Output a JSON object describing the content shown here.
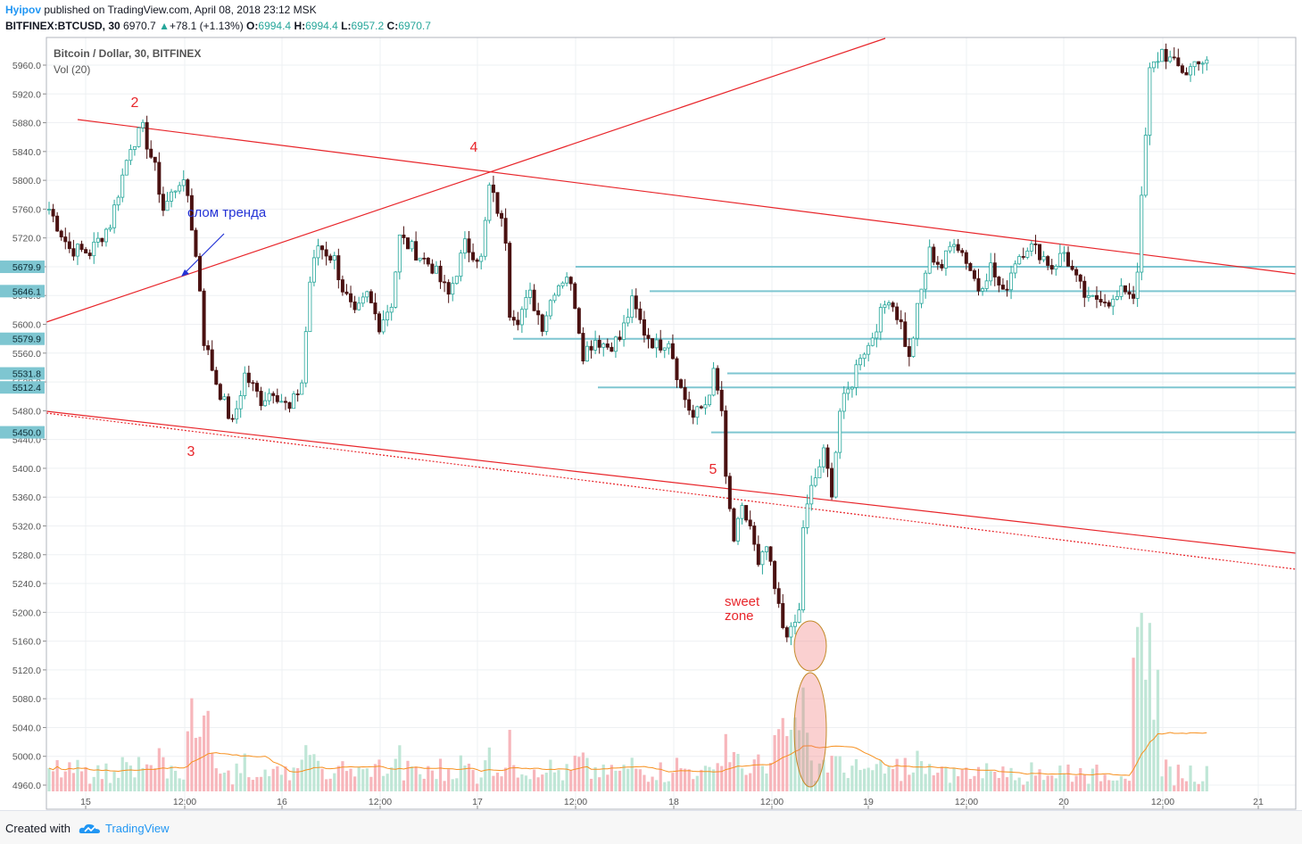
{
  "header": {
    "author": "Hyipov",
    "published": "published on TradingView.com, April 08, 2018 23:12 MSK",
    "symbol": "BITFINEX:BTCUSD, 30",
    "last": "6970.7",
    "up_arrow": "▲",
    "change": "+78.1 (+1.13%)",
    "o_label": "O:",
    "o_val": "6994.4",
    "h_label": "H:",
    "h_val": "6994.4",
    "l_label": "L:",
    "l_val": "6957.2",
    "c_label": "C:",
    "c_val": "6970.7"
  },
  "legend": {
    "title": "Bitcoin / Dollar, 30, BITFINEX",
    "volume": "Vol (20)"
  },
  "footer": {
    "created": "Created with",
    "brand": "TradingView"
  },
  "colors": {
    "up": "#26a69a",
    "down": "#4a1111",
    "trend": "#e8262b",
    "hline": "#7ec6d1",
    "vol_up": "#bfe6d6",
    "vol_down": "#f7b6bb",
    "vol_ma": "#f7901e",
    "annotation": "#e8262b",
    "arrow_text": "#2433d6"
  },
  "chart_data": {
    "type": "candlestick",
    "x_ticks": [
      "15",
      "12:00",
      "16",
      "12:00",
      "17",
      "12:00",
      "18",
      "12:00",
      "19",
      "12:00",
      "20",
      "12:00",
      "21"
    ],
    "y_ticks": [
      5960.0,
      5920.0,
      5880.0,
      5840.0,
      5800.0,
      5760.0,
      5720.0,
      5680.0,
      5640.0,
      5600.0,
      5560.0,
      5520.0,
      5480.0,
      5440.0,
      5400.0,
      5360.0,
      5320.0,
      5280.0,
      5240.0,
      5200.0,
      5160.0,
      5120.0,
      5080.0,
      5040.0,
      5000.0,
      4960.0
    ],
    "ylim": [
      4950,
      5980
    ],
    "price_labels": [
      5679.9,
      5646.1,
      5579.9,
      5531.8,
      5512.4,
      5450.0
    ],
    "anchors": [
      {
        "t": 0,
        "p": 5760
      },
      {
        "t": 5,
        "p": 5705
      },
      {
        "t": 10,
        "p": 5700
      },
      {
        "t": 15,
        "p": 5740
      },
      {
        "t": 20,
        "p": 5850
      },
      {
        "t": 23,
        "p": 5870
      },
      {
        "t": 26,
        "p": 5815
      },
      {
        "t": 28,
        "p": 5760
      },
      {
        "t": 32,
        "p": 5800
      },
      {
        "t": 34,
        "p": 5780
      },
      {
        "t": 37,
        "p": 5650
      },
      {
        "t": 38,
        "p": 5578
      },
      {
        "t": 41,
        "p": 5520
      },
      {
        "t": 45,
        "p": 5460
      },
      {
        "t": 48,
        "p": 5530
      },
      {
        "t": 52,
        "p": 5495
      },
      {
        "t": 55,
        "p": 5510
      },
      {
        "t": 59,
        "p": 5480
      },
      {
        "t": 62,
        "p": 5520
      },
      {
        "t": 64,
        "p": 5660
      },
      {
        "t": 66,
        "p": 5710
      },
      {
        "t": 70,
        "p": 5690
      },
      {
        "t": 72,
        "p": 5650
      },
      {
        "t": 75,
        "p": 5610
      },
      {
        "t": 78,
        "p": 5640
      },
      {
        "t": 81,
        "p": 5600
      },
      {
        "t": 84,
        "p": 5630
      },
      {
        "t": 86,
        "p": 5720
      },
      {
        "t": 90,
        "p": 5700
      },
      {
        "t": 94,
        "p": 5680
      },
      {
        "t": 98,
        "p": 5640
      },
      {
        "t": 102,
        "p": 5710
      },
      {
        "t": 106,
        "p": 5690
      },
      {
        "t": 108,
        "p": 5790
      },
      {
        "t": 110,
        "p": 5760
      },
      {
        "t": 112,
        "p": 5720
      },
      {
        "t": 113,
        "p": 5620
      },
      {
        "t": 115,
        "p": 5610
      },
      {
        "t": 118,
        "p": 5640
      },
      {
        "t": 121,
        "p": 5600
      },
      {
        "t": 124,
        "p": 5650
      },
      {
        "t": 127,
        "p": 5670
      },
      {
        "t": 129,
        "p": 5630
      },
      {
        "t": 131,
        "p": 5560
      },
      {
        "t": 134,
        "p": 5580
      },
      {
        "t": 137,
        "p": 5570
      },
      {
        "t": 140,
        "p": 5580
      },
      {
        "t": 143,
        "p": 5630
      },
      {
        "t": 146,
        "p": 5590
      },
      {
        "t": 149,
        "p": 5570
      },
      {
        "t": 152,
        "p": 5580
      },
      {
        "t": 155,
        "p": 5510
      },
      {
        "t": 158,
        "p": 5470
      },
      {
        "t": 161,
        "p": 5490
      },
      {
        "t": 163,
        "p": 5530
      },
      {
        "t": 165,
        "p": 5480
      },
      {
        "t": 166,
        "p": 5380
      },
      {
        "t": 168,
        "p": 5300
      },
      {
        "t": 170,
        "p": 5340
      },
      {
        "t": 172,
        "p": 5320
      },
      {
        "t": 174,
        "p": 5260
      },
      {
        "t": 176,
        "p": 5290
      },
      {
        "t": 178,
        "p": 5230
      },
      {
        "t": 180,
        "p": 5180
      },
      {
        "t": 182,
        "p": 5170
      },
      {
        "t": 184,
        "p": 5200
      },
      {
        "t": 185,
        "p": 5320
      },
      {
        "t": 187,
        "p": 5370
      },
      {
        "t": 190,
        "p": 5420
      },
      {
        "t": 192,
        "p": 5370
      },
      {
        "t": 194,
        "p": 5480
      },
      {
        "t": 197,
        "p": 5520
      },
      {
        "t": 199,
        "p": 5560
      },
      {
        "t": 201,
        "p": 5570
      },
      {
        "t": 203,
        "p": 5600
      },
      {
        "t": 206,
        "p": 5640
      },
      {
        "t": 209,
        "p": 5600
      },
      {
        "t": 211,
        "p": 5550
      },
      {
        "t": 213,
        "p": 5620
      },
      {
        "t": 216,
        "p": 5700
      },
      {
        "t": 219,
        "p": 5680
      },
      {
        "t": 222,
        "p": 5720
      },
      {
        "t": 225,
        "p": 5690
      },
      {
        "t": 228,
        "p": 5650
      },
      {
        "t": 231,
        "p": 5680
      },
      {
        "t": 234,
        "p": 5640
      },
      {
        "t": 237,
        "p": 5690
      },
      {
        "t": 240,
        "p": 5710
      },
      {
        "t": 243,
        "p": 5700
      },
      {
        "t": 246,
        "p": 5680
      },
      {
        "t": 249,
        "p": 5700
      },
      {
        "t": 252,
        "p": 5660
      },
      {
        "t": 255,
        "p": 5630
      },
      {
        "t": 258,
        "p": 5640
      },
      {
        "t": 261,
        "p": 5630
      },
      {
        "t": 264,
        "p": 5650
      },
      {
        "t": 266,
        "p": 5640
      },
      {
        "t": 267,
        "p": 5680
      },
      {
        "t": 268,
        "p": 5770
      },
      {
        "t": 270,
        "p": 5950
      },
      {
        "t": 273,
        "p": 5980
      },
      {
        "t": 276,
        "p": 5960
      },
      {
        "t": 279,
        "p": 5950
      },
      {
        "t": 282,
        "p": 5970
      },
      {
        "t": 284,
        "p": 5960
      }
    ],
    "annotations": [
      {
        "text": "2",
        "x_label": "15",
        "price": 5893
      },
      {
        "text": "3",
        "x_label": "12:00",
        "price": 5417
      },
      {
        "text": "4",
        "x_label": "17",
        "price": 5837
      },
      {
        "text": "5",
        "x_label": "18",
        "price": 5390
      },
      {
        "text": "слом тренда",
        "x_label": "12:00",
        "price": 5752
      },
      {
        "text": "sweet",
        "x_label": "12:00",
        "price": 5210
      },
      {
        "text": "zone",
        "x_label": "12:00",
        "price": 5190
      }
    ]
  }
}
